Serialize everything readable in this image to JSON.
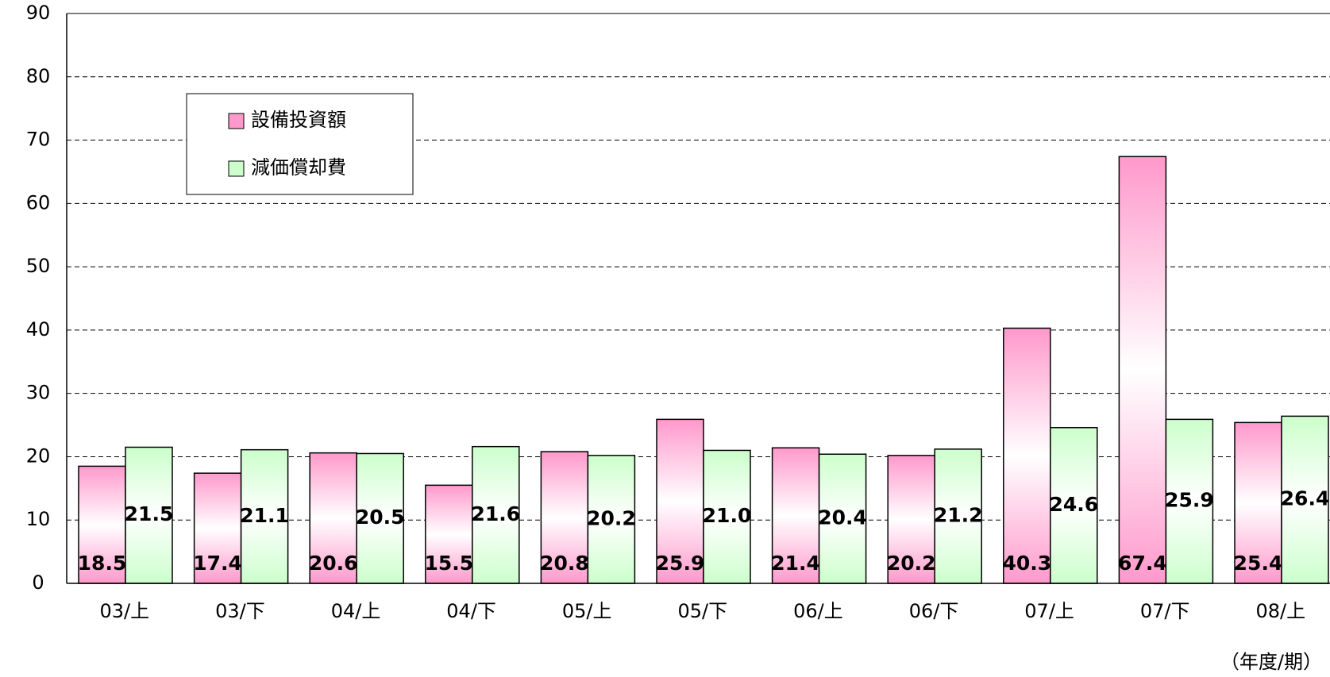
{
  "chart_data": {
    "type": "bar",
    "x_label": "（年度/期）",
    "categories": [
      "03/上",
      "03/下",
      "04/上",
      "04/下",
      "05/上",
      "05/下",
      "06/上",
      "06/下",
      "07/上",
      "07/下",
      "08/上"
    ],
    "series": [
      {
        "name": "設備投資額",
        "color": "#ff99cc",
        "values": [
          18.5,
          17.4,
          20.6,
          15.5,
          20.8,
          25.9,
          21.4,
          20.2,
          40.3,
          67.4,
          25.4
        ],
        "value_labels": [
          "18.5",
          "17.4",
          "20.6",
          "15.5",
          "20.8",
          "25.9",
          "21.4",
          "20.2",
          "40.3",
          "67.4",
          "25.4"
        ]
      },
      {
        "name": "減価償却費",
        "color": "#ccffcc",
        "values": [
          21.5,
          21.1,
          20.5,
          21.6,
          20.2,
          21.0,
          20.4,
          21.2,
          24.6,
          25.9,
          26.4
        ],
        "value_labels": [
          "21.5",
          "21.1",
          "20.5",
          "21.6",
          "20.2",
          "21.0",
          "20.4",
          "21.2",
          "24.6",
          "25.9",
          "26.4"
        ]
      }
    ],
    "ylim": [
      0,
      90
    ],
    "yticks": [
      0,
      10,
      20,
      30,
      40,
      50,
      60,
      70,
      80,
      90
    ],
    "grid": true
  }
}
